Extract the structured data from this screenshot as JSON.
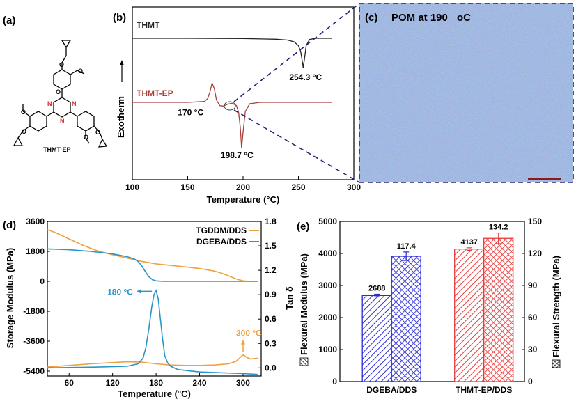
{
  "panels": {
    "a": {
      "label": "(a)",
      "molecule_name": "THMT-EP",
      "atoms": {
        "N": "N",
        "O": "O"
      }
    },
    "b": {
      "label": "(b)"
    },
    "c": {
      "label": "(c)",
      "title_prefix": "POM at 190 ",
      "title_unit": "oC",
      "image_color": "#8fa4d4"
    },
    "d": {
      "label": "(d)"
    },
    "e": {
      "label": "(e)"
    }
  },
  "chart_data": [
    {
      "id": "b",
      "type": "line",
      "xlabel": "Temperature (°C)",
      "ylabel": "Exotherm",
      "xlim": [
        100,
        300
      ],
      "xticks": [
        "100",
        "150",
        "200",
        "250",
        "300"
      ],
      "series": [
        {
          "name": "THMT",
          "color": "#222222",
          "x": [
            100,
            150,
            200,
            230,
            240,
            246,
            250,
            252,
            253.5,
            254.3,
            255.5,
            257,
            260,
            265,
            270,
            280
          ],
          "y": [
            1.0,
            1.0,
            0.99,
            0.97,
            0.94,
            0.88,
            0.75,
            0.55,
            0.2,
            0.0,
            0.3,
            0.75,
            0.96,
            1.0,
            1.0,
            1.0
          ]
        },
        {
          "name": "THMT-EP",
          "color": "#a8403a",
          "x": [
            100,
            150,
            165,
            168,
            170,
            172,
            174,
            176,
            179,
            182,
            186,
            190,
            194,
            196,
            197.5,
            198.7,
            200,
            202,
            206,
            215,
            240,
            280
          ],
          "y": [
            1.0,
            1.0,
            1.02,
            1.08,
            1.22,
            1.42,
            1.3,
            1.05,
            0.93,
            0.92,
            0.96,
            0.98,
            0.93,
            0.78,
            0.45,
            0.0,
            0.35,
            0.8,
            0.97,
            1.0,
            1.0,
            1.0
          ]
        }
      ],
      "annotations": [
        {
          "text": "254.3 °C",
          "x": 254.3,
          "series": "THMT"
        },
        {
          "text": "170 °C",
          "x": 170,
          "series": "THMT-EP"
        },
        {
          "text": "198.7 °C",
          "x": 198.7,
          "series": "THMT-EP"
        }
      ]
    },
    {
      "id": "d",
      "type": "line",
      "xlabel": "Temperature (°C)",
      "ylabel": "Storage Modulus (MPa)",
      "y2label": "Tan δ",
      "xlim": [
        30,
        325
      ],
      "ylim": [
        -5400,
        3600
      ],
      "y2lim": [
        -0.1,
        1.8
      ],
      "xticks": [
        "60",
        "120",
        "180",
        "240",
        "300"
      ],
      "yticks": [
        "3600",
        "1800",
        "0",
        "-1800",
        "-3600",
        "-5400"
      ],
      "y2ticks": [
        "1.8",
        "1.5",
        "1.2",
        "0.9",
        "0.6",
        "0.3",
        "0.0"
      ],
      "legend": "top-right",
      "series": [
        {
          "name": "TGDDM/DDS",
          "color": "#f0a040",
          "axis": "left",
          "role": "storage",
          "x": [
            30,
            40,
            60,
            80,
            100,
            120,
            140,
            160,
            180,
            200,
            220,
            240,
            260,
            270,
            280,
            290,
            300,
            310,
            320
          ],
          "y": [
            3100,
            2950,
            2550,
            2150,
            1820,
            1600,
            1400,
            1200,
            1050,
            960,
            870,
            770,
            620,
            500,
            330,
            150,
            30,
            0,
            0
          ]
        },
        {
          "name": "DGEBA/DDS",
          "color": "#2a95c8",
          "axis": "left",
          "role": "storage",
          "x": [
            30,
            60,
            90,
            120,
            140,
            150,
            155,
            160,
            165,
            170,
            175,
            180,
            190,
            220,
            260,
            320
          ],
          "y": [
            1950,
            1900,
            1800,
            1650,
            1480,
            1350,
            1200,
            950,
            600,
            280,
            100,
            30,
            0,
            0,
            0,
            0
          ]
        },
        {
          "name": "TGDDM/DDS",
          "color": "#f0a040",
          "axis": "right",
          "role": "tan_delta",
          "x": [
            30,
            60,
            90,
            120,
            140,
            160,
            180,
            200,
            220,
            240,
            260,
            280,
            290,
            295,
            300,
            305,
            310,
            320
          ],
          "y": [
            0.01,
            0.03,
            0.05,
            0.065,
            0.075,
            0.07,
            0.05,
            0.035,
            0.03,
            0.03,
            0.035,
            0.05,
            0.08,
            0.12,
            0.16,
            0.13,
            0.11,
            0.12
          ]
        },
        {
          "name": "DGEBA/DDS",
          "color": "#2a95c8",
          "axis": "right",
          "role": "tan_delta",
          "x": [
            30,
            100,
            140,
            155,
            162,
            166,
            170,
            174,
            177,
            180,
            183,
            186,
            189,
            192,
            196,
            200,
            210,
            240,
            300,
            320
          ],
          "y": [
            0.0,
            0.01,
            0.02,
            0.05,
            0.12,
            0.25,
            0.48,
            0.75,
            0.9,
            0.95,
            0.85,
            0.6,
            0.35,
            0.15,
            0.06,
            0.02,
            -0.02,
            -0.05,
            -0.07,
            -0.08
          ]
        }
      ],
      "annotations": [
        {
          "text": "180 °C",
          "x": 180,
          "color": "#2a95c8"
        },
        {
          "text": "300 °C",
          "x": 300,
          "color": "#f0a040"
        }
      ]
    },
    {
      "id": "e",
      "type": "bar",
      "categories": [
        "DGEBA/DDS",
        "THMT-EP/DDS"
      ],
      "ylabel": "Flexural Modulus (MPa)",
      "y2label": "Flexural Strength (MPa)",
      "ylim": [
        0,
        5000
      ],
      "y2lim": [
        0,
        150
      ],
      "yticks": [
        "5000",
        "4000",
        "3000",
        "2000",
        "1000",
        "0"
      ],
      "y2ticks": [
        "150",
        "120",
        "90",
        "60",
        "30",
        "0"
      ],
      "series": [
        {
          "name": "Flexural Modulus",
          "axis": "left",
          "values": [
            2688,
            4137
          ],
          "errors": [
            40,
            40
          ],
          "labels": [
            "2688",
            "4137"
          ],
          "colors": [
            "#2a2ad8",
            "#e83a3a"
          ],
          "pattern": "hatch"
        },
        {
          "name": "Flexural Strength",
          "axis": "right",
          "values": [
            117.4,
            134.2
          ],
          "errors": [
            4,
            5
          ],
          "labels": [
            "117.4",
            "134.2"
          ],
          "colors": [
            "#2a2ad8",
            "#e83a3a"
          ],
          "pattern": "crosshatch"
        }
      ]
    }
  ]
}
